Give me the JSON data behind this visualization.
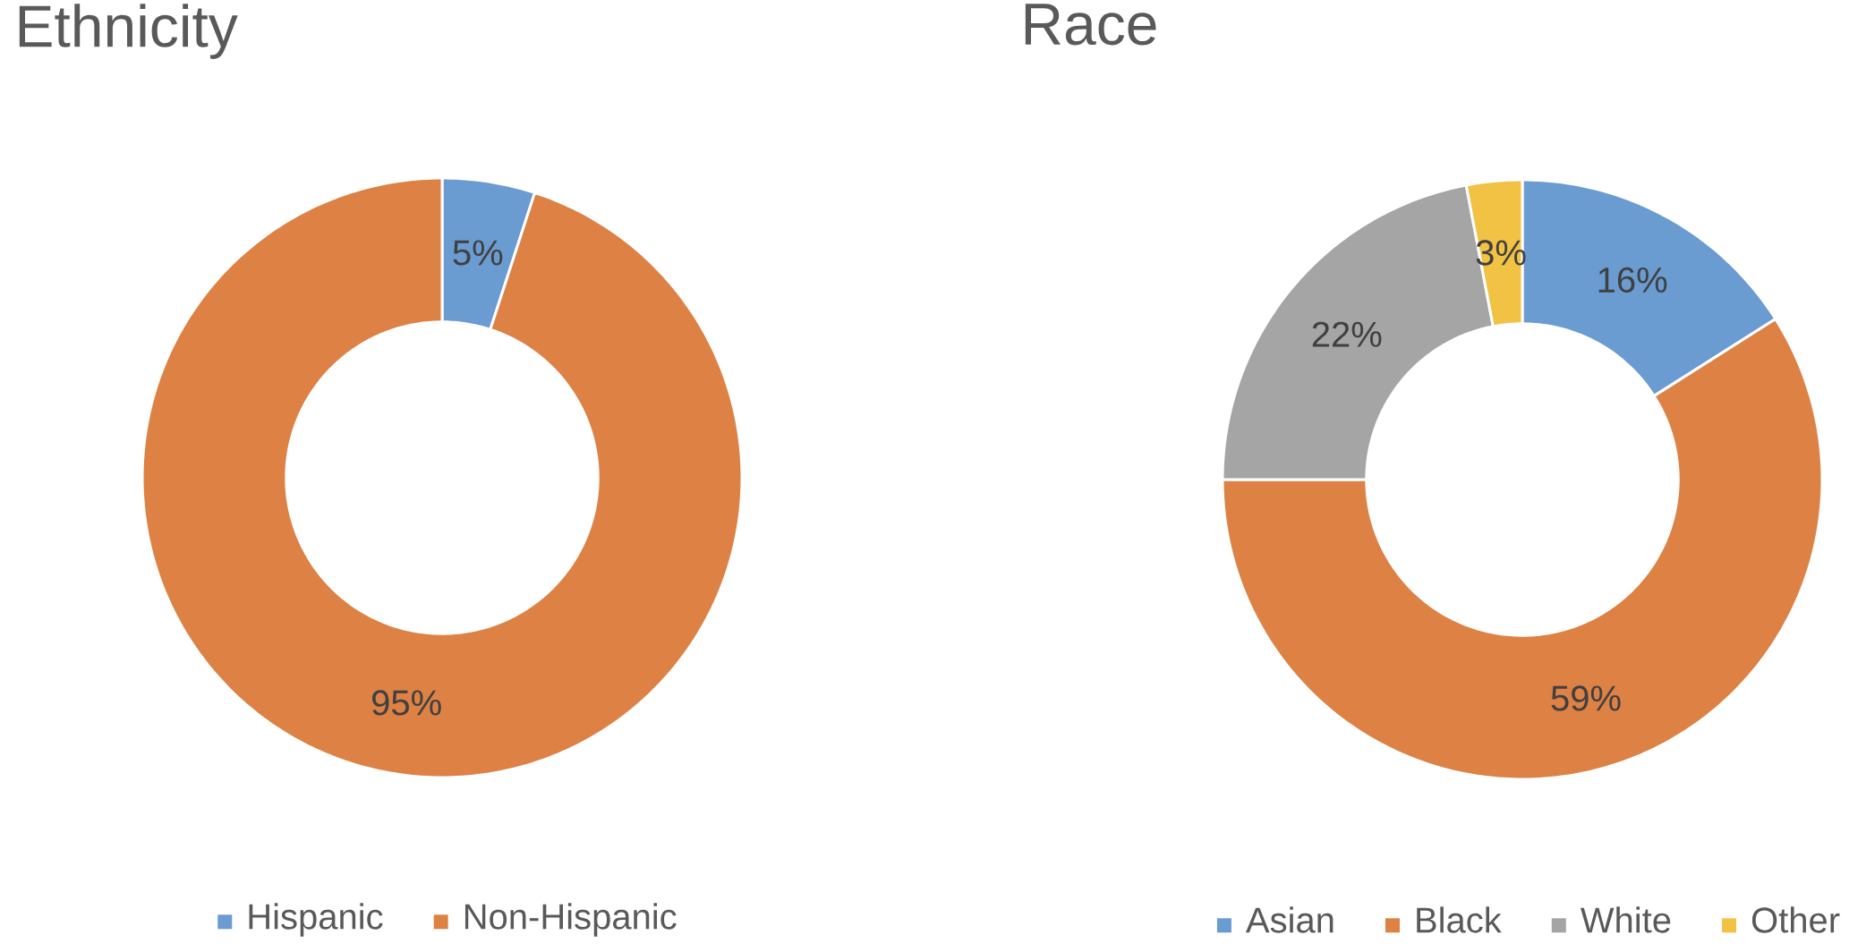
{
  "chart_data": [
    {
      "type": "donut",
      "title": "Ethnicity",
      "categories": [
        "Hispanic",
        "Non-Hispanic"
      ],
      "values": [
        5,
        95
      ],
      "colors": [
        "#6a9bd1",
        "#dd8144"
      ],
      "value_labels": [
        "5%",
        "95%"
      ],
      "legend": "bottom"
    },
    {
      "type": "donut",
      "title": "Race",
      "categories": [
        "Asian",
        "Black",
        "White",
        "Other"
      ],
      "values": [
        16,
        59,
        22,
        3
      ],
      "colors": [
        "#6a9bd1",
        "#dd8144",
        "#a5a5a5",
        "#f1c244"
      ],
      "value_labels": [
        "16%",
        "59%",
        "22%",
        "3%"
      ],
      "legend": "bottom"
    }
  ]
}
